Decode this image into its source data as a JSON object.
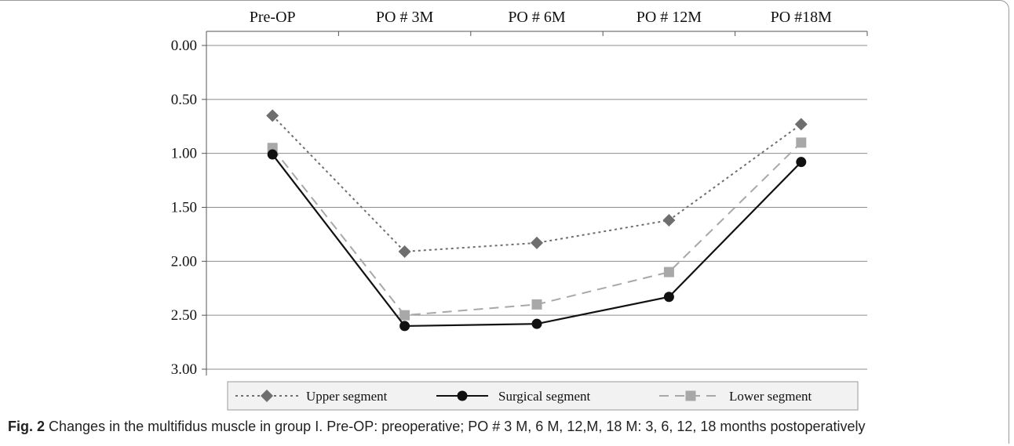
{
  "chart_data": {
    "type": "line",
    "categories": [
      "Pre-OP",
      "PO # 3M",
      "PO # 6M",
      "PO # 12M",
      "PO #18M"
    ],
    "ylim": [
      0,
      3
    ],
    "y_inverted": true,
    "y_ticks": [
      "0.00",
      "0.50",
      "1.00",
      "1.50",
      "2.00",
      "2.50",
      "3.00"
    ],
    "x_axis_position": "top",
    "grid": true,
    "legend_position": "bottom",
    "series": [
      {
        "name": "Upper segment",
        "values": [
          0.65,
          1.91,
          1.83,
          1.62,
          0.73
        ],
        "color": "#6e6e6e",
        "marker": "diamond",
        "style": "dotted"
      },
      {
        "name": "Surgical segment",
        "values": [
          1.01,
          2.6,
          2.58,
          2.33,
          1.08
        ],
        "color": "#111111",
        "marker": "circle",
        "style": "solid"
      },
      {
        "name": "Lower segment",
        "values": [
          0.95,
          2.5,
          2.4,
          2.1,
          0.9
        ],
        "color": "#a8a8a8",
        "marker": "square",
        "style": "dashed"
      }
    ]
  },
  "caption": {
    "label": "Fig. 2",
    "text": " Changes in the multifidus muscle in group I. Pre-OP: preoperative; PO # 3 M, 6 M, 12,M, 18 M: 3, 6, 12, 18 months postoperatively"
  }
}
